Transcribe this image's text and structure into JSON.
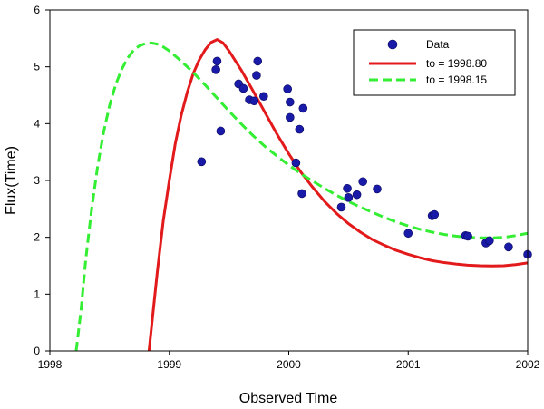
{
  "chart_data": {
    "type": "scatter",
    "xlabel": "Observed Time",
    "ylabel": "Flux(Time)",
    "xlim": [
      1998,
      2002
    ],
    "ylim": [
      0,
      6
    ],
    "x_ticks": [
      1998,
      1999,
      2000,
      2001,
      2002
    ],
    "y_ticks": [
      0,
      1,
      2,
      3,
      4,
      5,
      6
    ],
    "x_tick_labels": [
      "1998",
      "1999",
      "2000",
      "2001",
      "2002"
    ],
    "y_tick_labels": [
      "0",
      "1",
      "2",
      "3",
      "4",
      "5",
      "6"
    ],
    "grid": false,
    "legend_position": "top-right",
    "series": [
      {
        "name": "Data",
        "kind": "scatter",
        "color": "#1a1aa8",
        "points": [
          [
            1999.27,
            3.33
          ],
          [
            1999.39,
            4.95
          ],
          [
            1999.4,
            5.1
          ],
          [
            1999.43,
            3.87
          ],
          [
            1999.58,
            4.7
          ],
          [
            1999.62,
            4.62
          ],
          [
            1999.67,
            4.42
          ],
          [
            1999.71,
            4.4
          ],
          [
            1999.73,
            4.85
          ],
          [
            1999.74,
            5.1
          ],
          [
            1999.79,
            4.48
          ],
          [
            1999.99,
            4.61
          ],
          [
            2000.01,
            4.38
          ],
          [
            2000.01,
            4.11
          ],
          [
            2000.06,
            3.31
          ],
          [
            2000.09,
            3.9
          ],
          [
            2000.11,
            2.77
          ],
          [
            2000.12,
            4.27
          ],
          [
            2000.44,
            2.53
          ],
          [
            2000.49,
            2.86
          ],
          [
            2000.5,
            2.7
          ],
          [
            2000.57,
            2.75
          ],
          [
            2000.62,
            2.98
          ],
          [
            2000.74,
            2.85
          ],
          [
            2001.0,
            2.07
          ],
          [
            2001.2,
            2.38
          ],
          [
            2001.22,
            2.4
          ],
          [
            2001.48,
            2.03
          ],
          [
            2001.5,
            2.02
          ],
          [
            2001.65,
            1.9
          ],
          [
            2001.68,
            1.94
          ],
          [
            2001.84,
            1.83
          ],
          [
            2002.0,
            1.7
          ]
        ]
      },
      {
        "name": "to = 1998.80",
        "kind": "line",
        "style": "solid",
        "color": "#e31a1c",
        "points": [
          [
            1998.83,
            0.0
          ],
          [
            1998.86,
            0.6
          ],
          [
            1998.9,
            1.4
          ],
          [
            1998.95,
            2.3
          ],
          [
            1999.0,
            3.0
          ],
          [
            1999.05,
            3.65
          ],
          [
            1999.1,
            4.15
          ],
          [
            1999.15,
            4.55
          ],
          [
            1999.2,
            4.88
          ],
          [
            1999.25,
            5.12
          ],
          [
            1999.3,
            5.3
          ],
          [
            1999.35,
            5.43
          ],
          [
            1999.4,
            5.48
          ],
          [
            1999.45,
            5.42
          ],
          [
            1999.5,
            5.28
          ],
          [
            1999.6,
            4.95
          ],
          [
            1999.7,
            4.58
          ],
          [
            1999.8,
            4.2
          ],
          [
            1999.9,
            3.82
          ],
          [
            2000.0,
            3.47
          ],
          [
            2000.1,
            3.15
          ],
          [
            2000.2,
            2.88
          ],
          [
            2000.3,
            2.63
          ],
          [
            2000.4,
            2.42
          ],
          [
            2000.5,
            2.24
          ],
          [
            2000.6,
            2.09
          ],
          [
            2000.7,
            1.96
          ],
          [
            2000.8,
            1.86
          ],
          [
            2000.9,
            1.77
          ],
          [
            2001.0,
            1.7
          ],
          [
            2001.1,
            1.64
          ],
          [
            2001.2,
            1.59
          ],
          [
            2001.3,
            1.555
          ],
          [
            2001.4,
            1.53
          ],
          [
            2001.5,
            1.51
          ],
          [
            2001.6,
            1.5
          ],
          [
            2001.7,
            1.495
          ],
          [
            2001.8,
            1.5
          ],
          [
            2001.9,
            1.52
          ],
          [
            2002.0,
            1.55
          ]
        ]
      },
      {
        "name": "to = 1998.15",
        "kind": "line",
        "style": "dashed",
        "color": "#33ee33",
        "points": [
          [
            1998.22,
            0.0
          ],
          [
            1998.26,
            0.7
          ],
          [
            1998.3,
            1.6
          ],
          [
            1998.35,
            2.5
          ],
          [
            1998.4,
            3.25
          ],
          [
            1998.45,
            3.85
          ],
          [
            1998.5,
            4.32
          ],
          [
            1998.55,
            4.68
          ],
          [
            1998.6,
            4.95
          ],
          [
            1998.65,
            5.15
          ],
          [
            1998.7,
            5.29
          ],
          [
            1998.75,
            5.37
          ],
          [
            1998.8,
            5.41
          ],
          [
            1998.85,
            5.42
          ],
          [
            1998.9,
            5.4
          ],
          [
            1998.95,
            5.35
          ],
          [
            1999.0,
            5.28
          ],
          [
            1999.1,
            5.1
          ],
          [
            1999.2,
            4.9
          ],
          [
            1999.3,
            4.68
          ],
          [
            1999.4,
            4.45
          ],
          [
            1999.5,
            4.22
          ],
          [
            1999.6,
            4.0
          ],
          [
            1999.7,
            3.79
          ],
          [
            1999.8,
            3.6
          ],
          [
            1999.9,
            3.43
          ],
          [
            2000.0,
            3.27
          ],
          [
            2000.1,
            3.12
          ],
          [
            2000.2,
            2.99
          ],
          [
            2000.3,
            2.86
          ],
          [
            2000.4,
            2.74
          ],
          [
            2000.5,
            2.63
          ],
          [
            2000.6,
            2.53
          ],
          [
            2000.7,
            2.44
          ],
          [
            2000.8,
            2.35
          ],
          [
            2000.9,
            2.27
          ],
          [
            2001.0,
            2.2
          ],
          [
            2001.1,
            2.14
          ],
          [
            2001.2,
            2.09
          ],
          [
            2001.3,
            2.05
          ],
          [
            2001.4,
            2.02
          ],
          [
            2001.5,
            2.0
          ],
          [
            2001.6,
            1.99
          ],
          [
            2001.7,
            1.99
          ],
          [
            2001.8,
            2.0
          ],
          [
            2001.9,
            2.03
          ],
          [
            2002.0,
            2.07
          ]
        ]
      }
    ]
  }
}
